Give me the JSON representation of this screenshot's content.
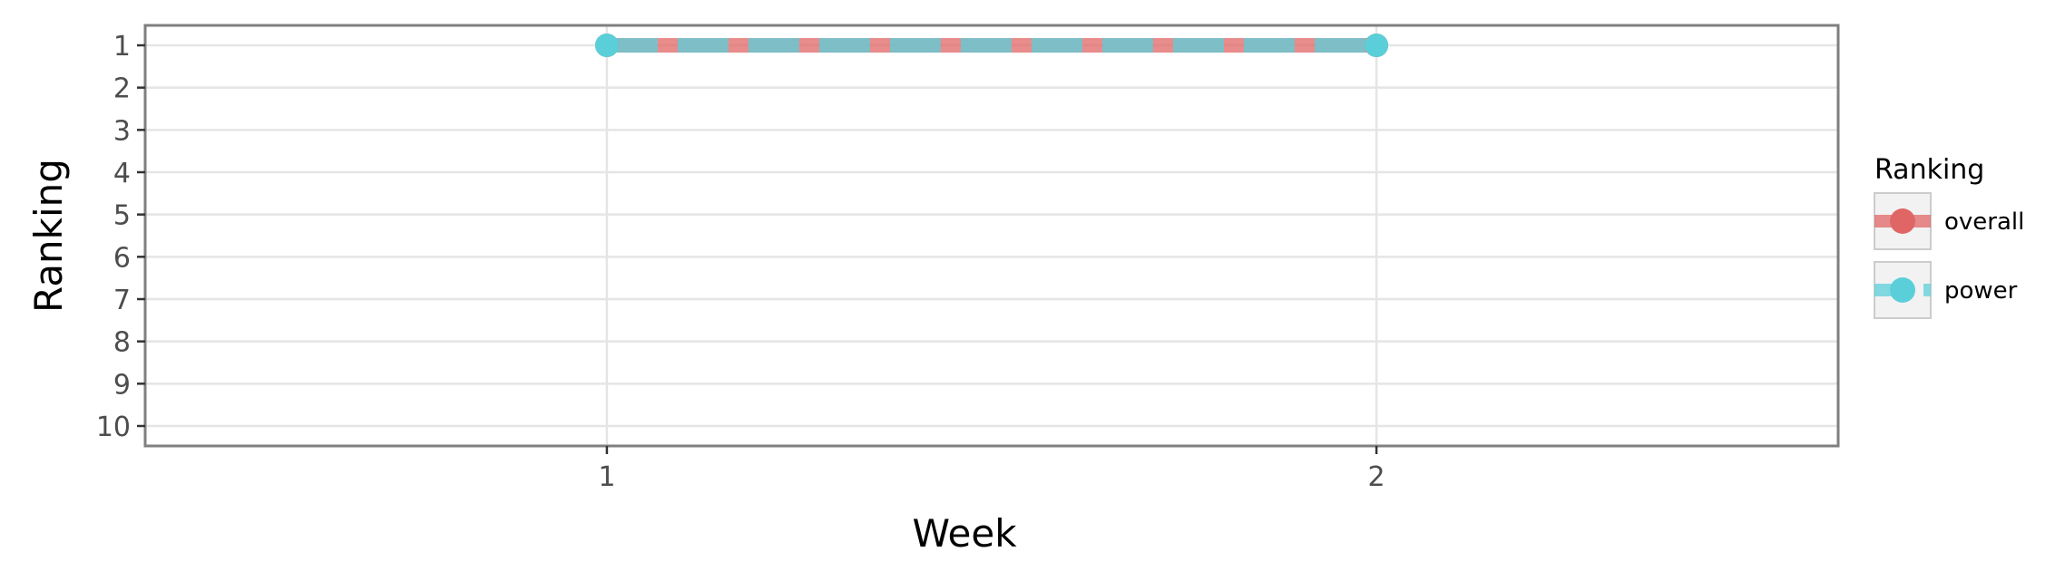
{
  "chart_data": {
    "type": "line",
    "xlabel": "Week",
    "ylabel": "Ranking",
    "x": [
      1,
      2
    ],
    "xticks": [
      "1",
      "2"
    ],
    "xlim": [
      0.4,
      2.6
    ],
    "yticks": [
      "1",
      "2",
      "3",
      "4",
      "5",
      "6",
      "7",
      "8",
      "9",
      "10"
    ],
    "ylim": [
      1,
      10
    ],
    "y_reversed": true,
    "grid": true,
    "legend": {
      "title": "Ranking",
      "placement": "right"
    },
    "series": [
      {
        "name": "overall",
        "values": [
          1,
          1
        ],
        "color": "#e06666",
        "line_style": "solid"
      },
      {
        "name": "power",
        "values": [
          1,
          1
        ],
        "color": "#5bcfd9",
        "line_style": "dashed"
      }
    ]
  }
}
